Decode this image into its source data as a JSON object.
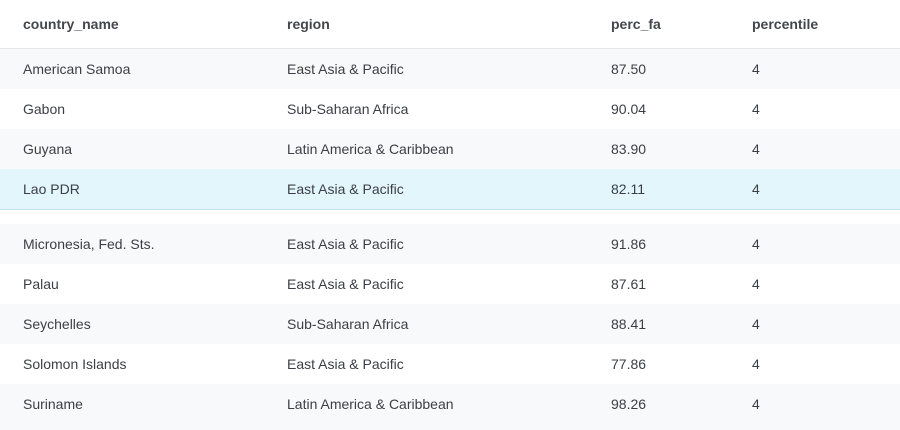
{
  "table": {
    "columns": [
      "country_name",
      "region",
      "perc_fa",
      "percentile"
    ],
    "rows": [
      [
        "American Samoa",
        "East Asia & Pacific",
        "87.50",
        "4"
      ],
      [
        "Gabon",
        "Sub-Saharan Africa",
        "90.04",
        "4"
      ],
      [
        "Guyana",
        "Latin America & Caribbean",
        "83.90",
        "4"
      ],
      [
        "Lao PDR",
        "East Asia & Pacific",
        "82.11",
        "4"
      ],
      [
        "Micronesia, Fed. Sts.",
        "East Asia & Pacific",
        "91.86",
        "4"
      ],
      [
        "Palau",
        "East Asia & Pacific",
        "87.61",
        "4"
      ],
      [
        "Seychelles",
        "Sub-Saharan Africa",
        "88.41",
        "4"
      ],
      [
        "Solomon Islands",
        "East Asia & Pacific",
        "77.86",
        "4"
      ],
      [
        "Suriname",
        "Latin America & Caribbean",
        "98.26",
        "4"
      ]
    ],
    "selected_row_label": "Lao PDR",
    "colors": {
      "header_border": "#e4e7ea",
      "stripe": "#f8f9fa",
      "selected_row": "#e2f6fb",
      "text": "#3b3f45"
    }
  }
}
